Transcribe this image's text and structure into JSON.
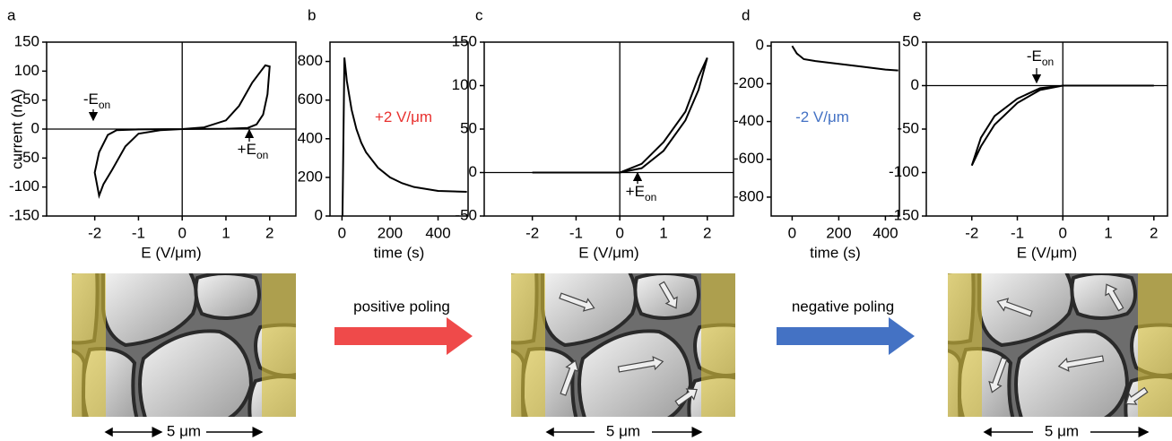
{
  "chart_data": [
    {
      "type": "line",
      "panel": "a",
      "xlabel": "E (V/μm)",
      "ylabel": "current (nA)",
      "xlim": [
        -3.1,
        2.6
      ],
      "xticks": [
        -2,
        -1,
        0,
        1,
        2
      ],
      "ylim": [
        -150,
        150
      ],
      "yticks": [
        -150,
        -100,
        -50,
        0,
        50,
        100,
        150
      ],
      "zero_lines": true,
      "series": [
        {
          "color": "#000000",
          "x": [
            0,
            0.5,
            1,
            1.3,
            1.6,
            1.8,
            1.9,
            2,
            1.95,
            1.85,
            1.7,
            1.5,
            1,
            0,
            -0.5,
            -1,
            -1.3,
            -1.6,
            -1.8,
            -1.9,
            -2,
            -1.9,
            -1.7,
            -1.5,
            -1,
            0
          ],
          "values": [
            0,
            3,
            15,
            40,
            80,
            100,
            110,
            108,
            60,
            25,
            8,
            2,
            0.5,
            0,
            -2,
            -8,
            -30,
            -70,
            -95,
            -115,
            -75,
            -40,
            -10,
            -2,
            -0.5,
            0
          ]
        }
      ],
      "annotations": [
        {
          "text": "-E",
          "sub": "on",
          "color": "#000000"
        },
        {
          "text": "+E",
          "sub": "on",
          "color": "#000000"
        }
      ]
    },
    {
      "type": "line",
      "panel": "b",
      "xlabel": "time (s)",
      "xlim": [
        -50,
        525
      ],
      "xticks": [
        0,
        200,
        400
      ],
      "ylim": [
        0,
        900
      ],
      "yticks": [
        0,
        200,
        400,
        600,
        800
      ],
      "zero_lines": false,
      "series": [
        {
          "color": "#000000",
          "x": [
            2,
            5,
            10,
            20,
            40,
            60,
            80,
            100,
            150,
            200,
            250,
            300,
            400,
            520
          ],
          "values": [
            0,
            300,
            820,
            700,
            550,
            450,
            380,
            330,
            250,
            200,
            170,
            150,
            130,
            125
          ]
        }
      ],
      "annotations": [
        {
          "text": "+2 V/μm",
          "color": "#e8312f"
        }
      ]
    },
    {
      "type": "line",
      "panel": "c",
      "xlabel": "E (V/μm)",
      "xlim": [
        -3.1,
        2.6
      ],
      "xticks": [
        -2,
        -1,
        0,
        1,
        2
      ],
      "ylim": [
        -50,
        150
      ],
      "yticks": [
        -50,
        0,
        50,
        100,
        150
      ],
      "zero_lines": true,
      "series": [
        {
          "color": "#000000",
          "x": [
            -2,
            0,
            0.5,
            1,
            1.5,
            1.8,
            2,
            1.8,
            1.5,
            1,
            0.5,
            0,
            -2
          ],
          "values": [
            0,
            0,
            5,
            25,
            60,
            95,
            132,
            110,
            70,
            35,
            10,
            0,
            0
          ]
        }
      ],
      "annotations": [
        {
          "text": "+E",
          "sub": "on",
          "color": "#000000"
        }
      ]
    },
    {
      "type": "line",
      "panel": "d",
      "xlabel": "time (s)",
      "xlim": [
        -90,
        460
      ],
      "xticks": [
        0,
        200,
        400
      ],
      "ylim": [
        -900,
        20
      ],
      "yticks": [
        -800,
        -600,
        -400,
        -200,
        0
      ],
      "zero_lines": false,
      "series": [
        {
          "color": "#000000",
          "x": [
            0,
            20,
            50,
            100,
            200,
            300,
            400,
            455
          ],
          "values": [
            0,
            -40,
            -70,
            -80,
            -95,
            -110,
            -125,
            -130
          ]
        }
      ],
      "annotations": [
        {
          "text": "-2 V/μm",
          "color": "#4472c4"
        }
      ]
    },
    {
      "type": "line",
      "panel": "e",
      "xlabel": "E (V/μm)",
      "xlim": [
        -3.0,
        2.3
      ],
      "xticks": [
        -2,
        -1,
        0,
        1,
        2
      ],
      "ylim": [
        -150,
        50
      ],
      "yticks": [
        -150,
        -100,
        -50,
        0,
        50
      ],
      "zero_lines": true,
      "series": [
        {
          "color": "#000000",
          "x": [
            2,
            0,
            -0.5,
            -1,
            -1.5,
            -1.8,
            -2,
            -1.8,
            -1.5,
            -1,
            -0.5,
            0,
            2
          ],
          "values": [
            0,
            0,
            -5,
            -20,
            -45,
            -70,
            -92,
            -60,
            -35,
            -15,
            -3,
            0,
            0
          ]
        }
      ],
      "annotations": [
        {
          "text": "-E",
          "sub": "on",
          "color": "#000000"
        }
      ]
    }
  ],
  "illustration": {
    "positive": "positive poling",
    "negative": "negative poling",
    "scale": [
      "5 μm",
      "5 μm",
      "5 μm"
    ]
  }
}
